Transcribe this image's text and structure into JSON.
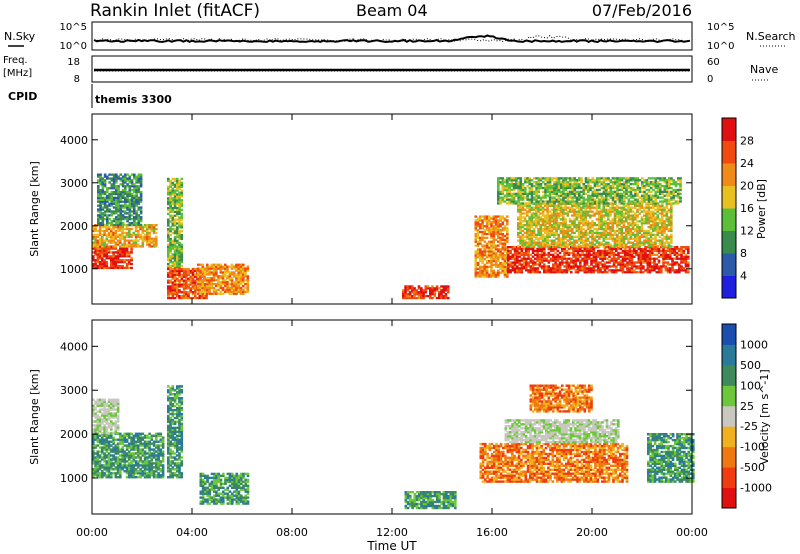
{
  "header": {
    "station": "Rankin Inlet (fitACF)",
    "beam": "Beam 04",
    "date": "07/Feb/2016"
  },
  "top_panels": {
    "nsky_label": "N.Sky",
    "nsky_ticks": [
      "10^5",
      "10^0"
    ],
    "nsearch_label": "N.Search",
    "nsearch_ticks": [
      "10^5",
      "10^0"
    ],
    "freq_label_line1": "Freq.",
    "freq_label_line2": "[MHz]",
    "freq_ticks": [
      "18",
      "8"
    ],
    "nave_label": "Nave",
    "nave_ticks": [
      "60",
      "0"
    ],
    "cpid_label": "CPID",
    "cpid_value": "themis 3300"
  },
  "chart_data": [
    {
      "type": "heatmap",
      "name": "power-panel",
      "ylabel": "Slant Range [km]",
      "xlabel": "",
      "ylim": [
        180,
        4600
      ],
      "xlim": [
        0,
        24
      ],
      "yticks": [
        "4000",
        "3000",
        "2000",
        "1000"
      ],
      "ytick_values": [
        4000,
        3000,
        2000,
        1000
      ],
      "colorbar": {
        "label": "Power [dB]",
        "ticks": [
          "28",
          "24",
          "20",
          "16",
          "12",
          "8",
          "4"
        ],
        "tick_values": [
          28,
          24,
          20,
          16,
          12,
          8,
          4
        ],
        "range": [
          0,
          32
        ],
        "colors": [
          "#1f1fe0",
          "#2a5aa8",
          "#3a8a4e",
          "#5bbf3a",
          "#e8c020",
          "#f08a18",
          "#f04a10",
          "#e01010"
        ]
      },
      "regions": [
        {
          "t": [
            0.0,
            1.6
          ],
          "r": [
            1000,
            1500
          ],
          "level": 28
        },
        {
          "t": [
            0.0,
            2.6
          ],
          "r": [
            1500,
            2000
          ],
          "level": 20
        },
        {
          "t": [
            0.2,
            2.0
          ],
          "r": [
            2000,
            3200
          ],
          "level": 10
        },
        {
          "t": [
            3.0,
            3.6
          ],
          "r": [
            1000,
            3100
          ],
          "level": 14
        },
        {
          "t": [
            3.0,
            4.6
          ],
          "r": [
            300,
            1000
          ],
          "level": 26
        },
        {
          "t": [
            4.2,
            6.2
          ],
          "r": [
            400,
            1100
          ],
          "level": 22
        },
        {
          "t": [
            12.4,
            14.2
          ],
          "r": [
            300,
            600
          ],
          "level": 28
        },
        {
          "t": [
            15.3,
            16.6
          ],
          "r": [
            800,
            2200
          ],
          "level": 22
        },
        {
          "t": [
            16.6,
            23.8
          ],
          "r": [
            900,
            1500
          ],
          "level": 28
        },
        {
          "t": [
            17.0,
            23.2
          ],
          "r": [
            1500,
            2500
          ],
          "level": 18
        },
        {
          "t": [
            16.2,
            23.5
          ],
          "r": [
            2500,
            3100
          ],
          "level": 14
        }
      ]
    },
    {
      "type": "heatmap",
      "name": "velocity-panel",
      "ylabel": "Slant Range [km]",
      "xlabel": "Time UT",
      "ylim": [
        180,
        4600
      ],
      "xlim": [
        0,
        24
      ],
      "yticks": [
        "4000",
        "3000",
        "2000",
        "1000"
      ],
      "ytick_values": [
        4000,
        3000,
        2000,
        1000
      ],
      "xticks": [
        "00:00",
        "04:00",
        "08:00",
        "12:00",
        "16:00",
        "20:00",
        "00:00"
      ],
      "xtick_values": [
        0,
        4,
        8,
        12,
        16,
        20,
        24
      ],
      "colorbar": {
        "label": "Velocity [m s^-1]",
        "ticks": [
          "1000",
          "500",
          "100",
          "25",
          "-25",
          "-100",
          "-500",
          "-1000"
        ],
        "tick_values": [
          1000,
          500,
          100,
          25,
          -25,
          -100,
          -500,
          -1000
        ],
        "colors": [
          "#1a4fb0",
          "#2a7a9a",
          "#3e8a5a",
          "#6cc83a",
          "#c8c8c0",
          "#f0b020",
          "#f07810",
          "#f03c10",
          "#e01010"
        ]
      },
      "regions": [
        {
          "t": [
            0.0,
            2.8
          ],
          "r": [
            1000,
            2000
          ],
          "class": "positive"
        },
        {
          "t": [
            0.0,
            1.0
          ],
          "r": [
            2000,
            2800
          ],
          "class": "near-zero"
        },
        {
          "t": [
            3.0,
            3.6
          ],
          "r": [
            1000,
            3100
          ],
          "class": "positive"
        },
        {
          "t": [
            4.3,
            6.2
          ],
          "r": [
            400,
            1100
          ],
          "class": "positive"
        },
        {
          "t": [
            12.5,
            14.5
          ],
          "r": [
            300,
            700
          ],
          "class": "positive"
        },
        {
          "t": [
            15.5,
            21.4
          ],
          "r": [
            900,
            1800
          ],
          "class": "negative"
        },
        {
          "t": [
            16.5,
            21.0
          ],
          "r": [
            1800,
            2300
          ],
          "class": "near-zero"
        },
        {
          "t": [
            17.5,
            20.0
          ],
          "r": [
            2500,
            3100
          ],
          "class": "negative"
        },
        {
          "t": [
            22.2,
            24.0
          ],
          "r": [
            900,
            2000
          ],
          "class": "positive"
        }
      ]
    }
  ]
}
